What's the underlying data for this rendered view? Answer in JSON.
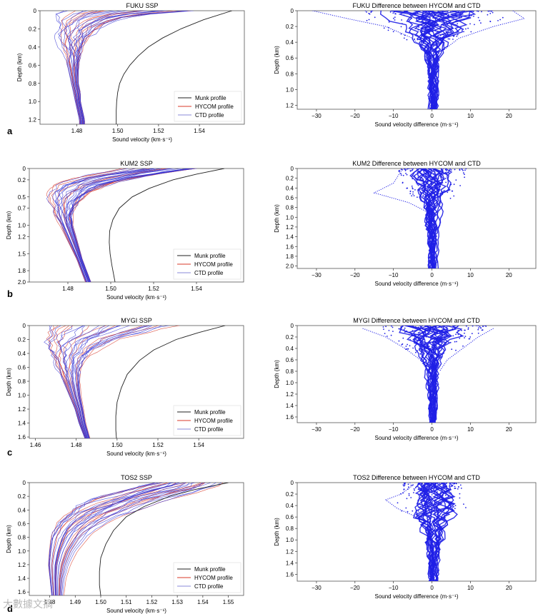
{
  "figure": {
    "colors": {
      "munk": "#222222",
      "hycom": "#3a3ad6",
      "ctd": "#d83a2a",
      "diff": "#1f1fe6",
      "frame": "#555555",
      "tick": "#333333"
    },
    "watermark": "大數據文摘"
  },
  "chart_data": [
    {
      "id": "a-ssp",
      "panel_letter": "a",
      "type": "line",
      "title": "FUKU SSP",
      "xlabel": "Sound velocity (km·s⁻¹)",
      "ylabel": "Depth (km)",
      "xlim": [
        1.462,
        1.562
      ],
      "ylim": [
        1.25,
        0
      ],
      "xticks": [
        1.48,
        1.5,
        1.52,
        1.54
      ],
      "xtick_labels": [
        "1.48",
        "1.50",
        "1.52",
        "1.54"
      ],
      "yticks": [
        0,
        0.2,
        0.4,
        0.6,
        0.8,
        1.0,
        1.2
      ],
      "ytick_labels": [
        "0",
        "0.2",
        "0.4",
        "0.6",
        "0.8",
        "1.0",
        "1.2"
      ],
      "legend": {
        "position": "bottom-right",
        "entries": [
          "Munk profile",
          "HYCOM profile",
          "CTD profile"
        ]
      },
      "munk": {
        "depth": [
          0,
          0.1,
          0.2,
          0.3,
          0.4,
          0.5,
          0.6,
          0.7,
          0.8,
          0.9,
          1.0,
          1.1,
          1.2,
          1.25
        ],
        "velocity": [
          1.556,
          1.542,
          1.531,
          1.522,
          1.515,
          1.51,
          1.506,
          1.503,
          1.501,
          1.5,
          1.4995,
          1.4993,
          1.4993,
          1.4993
        ]
      },
      "env": {
        "depth": [
          0,
          0.05,
          0.1,
          0.15,
          0.2,
          0.3,
          0.4,
          0.5,
          0.6,
          0.7,
          0.8,
          0.9,
          1.0,
          1.1,
          1.2,
          1.25
        ],
        "left": [
          1.468,
          1.466,
          1.466,
          1.467,
          1.468,
          1.47,
          1.472,
          1.474,
          1.475,
          1.476,
          1.477,
          1.478,
          1.479,
          1.48,
          1.481,
          1.481
        ],
        "right": [
          1.54,
          1.51,
          1.5,
          1.494,
          1.49,
          1.485,
          1.483,
          1.482,
          1.481,
          1.481,
          1.481,
          1.482,
          1.482,
          1.483,
          1.484,
          1.484
        ]
      },
      "profiles": {
        "hycom": 18,
        "ctd": 12
      }
    },
    {
      "id": "a-diff",
      "type": "line",
      "title": "FUKU Difference between HYCOM and CTD",
      "xlabel": "Sound velocity difference (m·s⁻¹)",
      "ylabel": "Depth (km)",
      "xlim": [
        -35,
        27
      ],
      "ylim": [
        1.25,
        0
      ],
      "xticks": [
        -30,
        -20,
        -10,
        0,
        10,
        20
      ],
      "xtick_labels": [
        "−30",
        "−20",
        "−10",
        "0",
        "10",
        "20"
      ],
      "yticks": [
        0,
        0.2,
        0.4,
        0.6,
        0.8,
        1.0,
        1.2
      ],
      "ytick_labels": [
        "0",
        "0.2",
        "0.4",
        "0.6",
        "0.8",
        "1.0",
        "1.2"
      ],
      "spread": [
        [
          0,
          20
        ],
        [
          0.15,
          16
        ],
        [
          0.3,
          9
        ],
        [
          0.45,
          6
        ],
        [
          0.6,
          3.5
        ],
        [
          0.8,
          2.5
        ],
        [
          1.0,
          2.2
        ],
        [
          1.25,
          2
        ]
      ],
      "outliers": [
        [
          [
            0,
            -31
          ],
          [
            0.1,
            -22
          ],
          [
            0.2,
            -12
          ],
          [
            0.35,
            -5
          ],
          [
            0.5,
            -2
          ]
        ],
        [
          [
            0,
            21
          ],
          [
            0.1,
            24
          ],
          [
            0.2,
            16
          ],
          [
            0.35,
            7
          ],
          [
            0.5,
            3
          ]
        ]
      ],
      "profiles": 24
    },
    {
      "id": "b-ssp",
      "panel_letter": "b",
      "type": "line",
      "title": "KUM2 SSP",
      "xlabel": "Sound velocity (km·s⁻¹)",
      "ylabel": "Depth (km)",
      "xlim": [
        1.462,
        1.562
      ],
      "ylim": [
        2.0,
        0
      ],
      "xticks": [
        1.48,
        1.5,
        1.52,
        1.54
      ],
      "xtick_labels": [
        "1.48",
        "1.50",
        "1.52",
        "1.54"
      ],
      "yticks": [
        0,
        0.2,
        0.5,
        0.7,
        1.0,
        1.2,
        1.5,
        1.8,
        2.0
      ],
      "ytick_labels": [
        "0",
        "0.2",
        "0.5",
        "0.7",
        "1.0",
        "1.2",
        "1.5",
        "1.8",
        "2.0"
      ],
      "legend": {
        "position": "bottom-right",
        "entries": [
          "Munk profile",
          "HYCOM profile",
          "CTD profile"
        ]
      },
      "munk": {
        "depth": [
          0,
          0.1,
          0.2,
          0.35,
          0.5,
          0.7,
          0.9,
          1.1,
          1.3,
          1.5,
          1.7,
          1.9,
          2.0
        ],
        "velocity": [
          1.553,
          1.54,
          1.529,
          1.518,
          1.51,
          1.504,
          1.501,
          1.4995,
          1.4993,
          1.4997,
          1.5005,
          1.5015,
          1.502
        ]
      },
      "env": {
        "depth": [
          0,
          0.1,
          0.2,
          0.3,
          0.4,
          0.5,
          0.6,
          0.8,
          1.0,
          1.3,
          1.6,
          2.0
        ],
        "left": [
          1.505,
          1.49,
          1.478,
          1.472,
          1.47,
          1.47,
          1.471,
          1.473,
          1.476,
          1.48,
          1.484,
          1.488
        ],
        "right": [
          1.545,
          1.525,
          1.51,
          1.5,
          1.493,
          1.489,
          1.486,
          1.483,
          1.483,
          1.485,
          1.487,
          1.491
        ]
      },
      "profiles": {
        "hycom": 22,
        "ctd": 12
      }
    },
    {
      "id": "b-diff",
      "type": "line",
      "title": "KUM2 Difference between HYCOM and CTD",
      "xlabel": "Sound velocity difference (m·s⁻¹)",
      "ylabel": "Depth (km)",
      "xlim": [
        -35,
        27
      ],
      "ylim": [
        2.05,
        0
      ],
      "xticks": [
        -30,
        -20,
        -10,
        0,
        10,
        20
      ],
      "xtick_labels": [
        "−30",
        "−20",
        "−10",
        "0",
        "10",
        "20"
      ],
      "yticks": [
        0,
        0.2,
        0.4,
        0.6,
        0.8,
        1.0,
        1.2,
        1.4,
        1.6,
        1.8,
        2.0
      ],
      "ytick_labels": [
        "0",
        "0.2",
        "0.4",
        "0.6",
        "0.8",
        "1.0",
        "1.2",
        "1.4",
        "1.6",
        "1.8",
        "2.0"
      ],
      "spread": [
        [
          0,
          9
        ],
        [
          0.2,
          8
        ],
        [
          0.5,
          6
        ],
        [
          0.8,
          4
        ],
        [
          1.2,
          3
        ],
        [
          1.6,
          2.5
        ],
        [
          2.0,
          2
        ]
      ],
      "outliers": [
        [
          [
            0.05,
            -8
          ],
          [
            0.3,
            -10
          ],
          [
            0.5,
            -15
          ],
          [
            0.7,
            -6
          ],
          [
            0.9,
            -1
          ]
        ]
      ],
      "profiles": 24
    },
    {
      "id": "c-ssp",
      "panel_letter": "c",
      "type": "line",
      "title": "MYGI SSP",
      "xlabel": "Sound velocity (km·s⁻¹)",
      "ylabel": "Depth (km)",
      "xlim": [
        1.457,
        1.562
      ],
      "ylim": [
        1.62,
        0
      ],
      "xticks": [
        1.46,
        1.48,
        1.5,
        1.52,
        1.54
      ],
      "xtick_labels": [
        "1.46",
        "1.48",
        "1.50",
        "1.52",
        "1.54"
      ],
      "yticks": [
        0,
        0.2,
        0.4,
        0.6,
        0.8,
        1.0,
        1.2,
        1.4,
        1.6
      ],
      "ytick_labels": [
        "0",
        "0.2",
        "0.4",
        "0.6",
        "0.8",
        "1.0",
        "1.2",
        "1.4",
        "1.6"
      ],
      "legend": {
        "position": "bottom-right",
        "entries": [
          "Munk profile",
          "HYCOM profile",
          "CTD profile"
        ]
      },
      "munk": {
        "depth": [
          0,
          0.1,
          0.2,
          0.35,
          0.5,
          0.7,
          0.9,
          1.1,
          1.3,
          1.5,
          1.62
        ],
        "velocity": [
          1.553,
          1.54,
          1.529,
          1.518,
          1.511,
          1.505,
          1.502,
          1.5,
          1.4994,
          1.4994,
          1.4997
        ]
      },
      "env": {
        "depth": [
          0,
          0.1,
          0.2,
          0.3,
          0.4,
          0.5,
          0.6,
          0.8,
          1.0,
          1.2,
          1.4,
          1.62
        ],
        "left": [
          1.462,
          1.461,
          1.462,
          1.464,
          1.466,
          1.468,
          1.47,
          1.473,
          1.476,
          1.479,
          1.481,
          1.484
        ],
        "right": [
          1.535,
          1.52,
          1.505,
          1.496,
          1.49,
          1.486,
          1.484,
          1.483,
          1.483,
          1.484,
          1.485,
          1.487
        ]
      },
      "profiles": {
        "hycom": 20,
        "ctd": 12
      }
    },
    {
      "id": "c-diff",
      "type": "line",
      "title": "MYGI Difference between HYCOM and CTD",
      "xlabel": "Sound velocity difference (m·s⁻¹)",
      "ylabel": "Depth (km)",
      "xlim": [
        -35,
        27
      ],
      "ylim": [
        1.7,
        0
      ],
      "xticks": [
        -30,
        -20,
        -10,
        0,
        10,
        20
      ],
      "xtick_labels": [
        "−30",
        "−20",
        "−10",
        "0",
        "10",
        "20"
      ],
      "yticks": [
        0,
        0.2,
        0.4,
        0.6,
        0.8,
        1.0,
        1.2,
        1.4,
        1.6
      ],
      "ytick_labels": [
        "0",
        "0.2",
        "0.4",
        "0.6",
        "0.8",
        "1.0",
        "1.2",
        "1.4",
        "1.6"
      ],
      "spread": [
        [
          0,
          14
        ],
        [
          0.15,
          12
        ],
        [
          0.35,
          8
        ],
        [
          0.5,
          5
        ],
        [
          0.8,
          3
        ],
        [
          1.2,
          2
        ],
        [
          1.65,
          1.5
        ]
      ],
      "outliers": [
        [
          [
            0.05,
            -18
          ],
          [
            0.2,
            -12
          ],
          [
            0.4,
            -7
          ],
          [
            0.6,
            -3
          ],
          [
            0.8,
            -1
          ]
        ],
        [
          [
            0.05,
            16
          ],
          [
            0.2,
            12
          ],
          [
            0.4,
            8
          ],
          [
            0.6,
            4
          ],
          [
            0.8,
            2
          ]
        ]
      ],
      "profiles": 24
    },
    {
      "id": "d-ssp",
      "panel_letter": "d",
      "type": "line",
      "title": "TOS2 SSP",
      "xlabel": "Sound velocity (km·s⁻¹)",
      "ylabel": "Depth (km)",
      "xlim": [
        1.472,
        1.556
      ],
      "ylim": [
        1.65,
        0
      ],
      "xticks": [
        1.48,
        1.49,
        1.5,
        1.51,
        1.52,
        1.53,
        1.54,
        1.55
      ],
      "xtick_labels": [
        "1.48",
        "1.49",
        "1.50",
        "1.51",
        "1.52",
        "1.53",
        "1.54",
        "1.55"
      ],
      "yticks": [
        0,
        0.2,
        0.4,
        0.6,
        0.8,
        1.0,
        1.2,
        1.4,
        1.6
      ],
      "ytick_labels": [
        "0",
        "0.2",
        "0.4",
        "0.6",
        "0.8",
        "1.0",
        "1.2",
        "1.4",
        "1.6"
      ],
      "legend": {
        "position": "bottom-right",
        "entries": [
          "Munk profile",
          "HYCOM profile",
          "CTD profile"
        ]
      },
      "munk": {
        "depth": [
          0,
          0.1,
          0.2,
          0.35,
          0.5,
          0.7,
          0.9,
          1.1,
          1.3,
          1.5,
          1.65
        ],
        "velocity": [
          1.55,
          1.537,
          1.527,
          1.517,
          1.51,
          1.505,
          1.502,
          1.5,
          1.4995,
          1.4995,
          1.5
        ]
      },
      "env": {
        "depth": [
          0,
          0.1,
          0.2,
          0.3,
          0.4,
          0.5,
          0.6,
          0.7,
          0.8,
          1.0,
          1.2,
          1.4,
          1.65
        ],
        "left": [
          1.518,
          1.508,
          1.498,
          1.49,
          1.485,
          1.482,
          1.48,
          1.479,
          1.478,
          1.478,
          1.478,
          1.479,
          1.48
        ],
        "right": [
          1.552,
          1.545,
          1.535,
          1.526,
          1.518,
          1.511,
          1.505,
          1.5,
          1.497,
          1.492,
          1.489,
          1.487,
          1.486
        ]
      },
      "profiles": {
        "hycom": 20,
        "ctd": 12
      }
    },
    {
      "id": "d-diff",
      "type": "line",
      "title": "TOS2 Difference between HYCOM and CTD",
      "xlabel": "Sound velocity difference (m·s⁻¹)",
      "ylabel": "Depth (km)",
      "xlim": [
        -35,
        27
      ],
      "ylim": [
        1.72,
        0
      ],
      "xticks": [
        -30,
        -20,
        -10,
        0,
        10,
        20
      ],
      "xtick_labels": [
        "−30",
        "−20",
        "−10",
        "0",
        "10",
        "20"
      ],
      "yticks": [
        0,
        0.2,
        0.4,
        0.6,
        0.8,
        1.0,
        1.2,
        1.4,
        1.6
      ],
      "ytick_labels": [
        "0",
        "0.2",
        "0.4",
        "0.6",
        "0.8",
        "1.0",
        "1.2",
        "1.4",
        "1.6"
      ],
      "spread": [
        [
          0,
          7
        ],
        [
          0.2,
          8
        ],
        [
          0.4,
          9
        ],
        [
          0.6,
          8
        ],
        [
          0.8,
          5
        ],
        [
          1.2,
          2.5
        ],
        [
          1.7,
          2
        ]
      ],
      "outliers": [
        [
          [
            0.05,
            -5
          ],
          [
            0.2,
            -8
          ],
          [
            0.3,
            -12
          ],
          [
            0.45,
            -9
          ],
          [
            0.6,
            -4
          ],
          [
            0.8,
            -1
          ]
        ]
      ],
      "profiles": 24
    }
  ]
}
